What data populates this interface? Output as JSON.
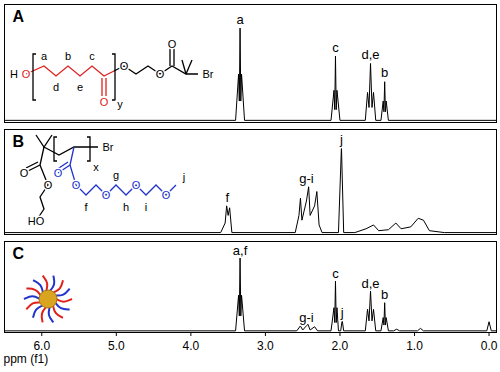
{
  "chart_data": [
    {
      "type": "line",
      "title": "A",
      "color": "#000000",
      "xlim": [
        6.5,
        -0.1
      ],
      "ylim": [
        0,
        1.1
      ],
      "tick_labels": false,
      "x": [
        6.5,
        3.4,
        3.36,
        3.35,
        3.34,
        3.33,
        3.32,
        3.28,
        2.12,
        2.08,
        2.07,
        2.06,
        2.05,
        2.04,
        2.0,
        1.66,
        1.63,
        1.61,
        1.59,
        1.57,
        1.55,
        1.52,
        1.45,
        1.42,
        1.41,
        1.4,
        1.39,
        1.38,
        1.35,
        -0.1
      ],
      "values": [
        0.02,
        0.02,
        0.45,
        0.2,
        0.88,
        0.2,
        0.45,
        0.02,
        0.02,
        0.3,
        0.12,
        0.62,
        0.12,
        0.3,
        0.02,
        0.02,
        0.28,
        0.14,
        0.55,
        0.14,
        0.28,
        0.02,
        0.02,
        0.2,
        0.1,
        0.38,
        0.1,
        0.2,
        0.02,
        0.02
      ],
      "annotations": [
        {
          "text": "a",
          "x": 3.34,
          "y": 0.92
        },
        {
          "text": "c",
          "x": 2.06,
          "y": 0.66
        },
        {
          "text": "d,e",
          "x": 1.59,
          "y": 0.59
        },
        {
          "text": "b",
          "x": 1.4,
          "y": 0.42
        }
      ],
      "structure_labels": [
        "H",
        "O",
        "a",
        "b",
        "c",
        "d",
        "e",
        "O",
        "y",
        "O",
        "O",
        "O",
        "Br"
      ]
    },
    {
      "type": "line",
      "title": "B",
      "color": "#000000",
      "xlim": [
        6.5,
        -0.1
      ],
      "ylim": [
        0,
        1.1
      ],
      "tick_labels": false,
      "x": [
        6.5,
        3.6,
        3.54,
        3.52,
        3.5,
        3.48,
        3.45,
        2.6,
        2.55,
        2.53,
        2.51,
        2.45,
        2.42,
        2.4,
        2.34,
        2.31,
        2.28,
        2.24,
        2.02,
        1.98,
        1.95,
        1.8,
        1.65,
        1.55,
        1.48,
        1.35,
        1.25,
        1.18,
        1.05,
        0.95,
        0.88,
        0.8,
        0.6,
        -0.1
      ],
      "values": [
        0.02,
        0.02,
        0.12,
        0.3,
        0.2,
        0.28,
        0.02,
        0.02,
        0.2,
        0.38,
        0.15,
        0.35,
        0.5,
        0.2,
        0.3,
        0.45,
        0.1,
        0.02,
        0.02,
        0.92,
        0.02,
        0.02,
        0.06,
        0.1,
        0.04,
        0.05,
        0.12,
        0.06,
        0.08,
        0.17,
        0.15,
        0.04,
        0.02,
        0.02
      ],
      "annotations": [
        {
          "text": "f",
          "x": 3.51,
          "y": 0.34
        },
        {
          "text": "g-i",
          "x": 2.45,
          "y": 0.54
        },
        {
          "text": "j",
          "x": 1.98,
          "y": 0.95
        }
      ],
      "structure_labels": [
        "Br",
        "x",
        "O",
        "O",
        "HO",
        "O",
        "O",
        "f",
        "O",
        "g",
        "h",
        "O",
        "i",
        "O",
        "j"
      ]
    },
    {
      "type": "line",
      "title": "C",
      "color": "#000000",
      "xlim": [
        6.5,
        -0.1
      ],
      "ylim": [
        0,
        1.1
      ],
      "tick_labels": "x",
      "xlabel": "ppm (f1)",
      "xticks": [
        {
          "value": 6,
          "label": "6.0"
        },
        {
          "value": 5,
          "label": "5.0"
        },
        {
          "value": 4,
          "label": "4.0"
        },
        {
          "value": 3,
          "label": "3.0"
        },
        {
          "value": 2,
          "label": "2.0"
        },
        {
          "value": 1,
          "label": "1.0"
        },
        {
          "value": 0,
          "label": "0.0"
        }
      ],
      "x": [
        6.5,
        3.4,
        3.36,
        3.35,
        3.34,
        3.33,
        3.32,
        3.28,
        2.58,
        2.53,
        2.5,
        2.43,
        2.4,
        2.34,
        2.3,
        2.12,
        2.08,
        2.07,
        2.06,
        2.05,
        2.04,
        2.02,
        1.99,
        1.97,
        1.95,
        1.66,
        1.63,
        1.61,
        1.59,
        1.57,
        1.55,
        1.52,
        1.45,
        1.42,
        1.41,
        1.4,
        1.39,
        1.38,
        1.35,
        1.28,
        1.24,
        1.2,
        0.96,
        0.92,
        0.88,
        0.03,
        0.0,
        -0.03,
        -0.1
      ],
      "values": [
        0.02,
        0.02,
        0.45,
        0.2,
        0.9,
        0.2,
        0.45,
        0.02,
        0.02,
        0.08,
        0.03,
        0.1,
        0.03,
        0.07,
        0.02,
        0.02,
        0.3,
        0.12,
        0.62,
        0.12,
        0.3,
        0.02,
        0.02,
        0.15,
        0.02,
        0.02,
        0.28,
        0.14,
        0.5,
        0.14,
        0.28,
        0.02,
        0.02,
        0.18,
        0.09,
        0.36,
        0.09,
        0.18,
        0.02,
        0.02,
        0.04,
        0.02,
        0.02,
        0.05,
        0.02,
        0.02,
        0.13,
        0.02,
        0.02
      ],
      "annotations": [
        {
          "text": "a,f",
          "x": 3.34,
          "y": 0.94
        },
        {
          "text": "g-i",
          "x": 2.45,
          "y": 0.13
        },
        {
          "text": "j",
          "x": 1.97,
          "y": 0.19
        },
        {
          "text": "c",
          "x": 2.06,
          "y": 0.66
        },
        {
          "text": "d,e",
          "x": 1.59,
          "y": 0.54
        },
        {
          "text": "b",
          "x": 1.4,
          "y": 0.4
        }
      ]
    }
  ]
}
